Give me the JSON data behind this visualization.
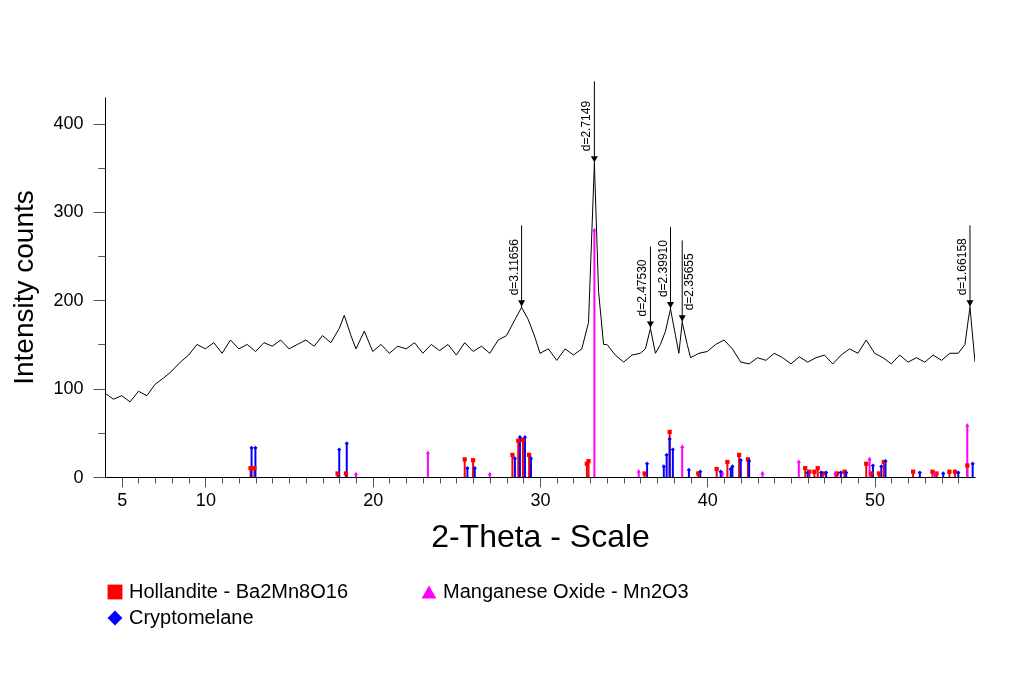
{
  "chart_data": {
    "type": "line",
    "xlabel": "2-Theta - Scale",
    "ylabel": "Intensity counts",
    "xlim": [
      4,
      56
    ],
    "ylim": [
      0,
      430
    ],
    "xticks": [
      5,
      {
        "value": 6,
        "label": null
      },
      {
        "value": 7,
        "label": null
      },
      {
        "value": 8,
        "label": null
      },
      {
        "value": 9,
        "label": null
      },
      10,
      {
        "value": 11,
        "label": null
      },
      {
        "value": 12,
        "label": null
      },
      {
        "value": 13,
        "label": null
      },
      {
        "value": 14,
        "label": null
      },
      {
        "value": 15,
        "label": null
      },
      {
        "value": 16,
        "label": null
      },
      {
        "value": 17,
        "label": null
      },
      {
        "value": 18,
        "label": null
      },
      {
        "value": 19,
        "label": null
      },
      20,
      {
        "value": 21,
        "label": null
      },
      {
        "value": 22,
        "label": null
      },
      {
        "value": 23,
        "label": null
      },
      {
        "value": 24,
        "label": null
      },
      {
        "value": 25,
        "label": null
      },
      {
        "value": 26,
        "label": null
      },
      {
        "value": 27,
        "label": null
      },
      {
        "value": 28,
        "label": null
      },
      {
        "value": 29,
        "label": null
      },
      30,
      {
        "value": 31,
        "label": null
      },
      {
        "value": 32,
        "label": null
      },
      {
        "value": 33,
        "label": null
      },
      {
        "value": 34,
        "label": null
      },
      {
        "value": 35,
        "label": null
      },
      {
        "value": 36,
        "label": null
      },
      {
        "value": 37,
        "label": null
      },
      {
        "value": 38,
        "label": null
      },
      {
        "value": 39,
        "label": null
      },
      40,
      {
        "value": 41,
        "label": null
      },
      {
        "value": 42,
        "label": null
      },
      {
        "value": 43,
        "label": null
      },
      {
        "value": 44,
        "label": null
      },
      {
        "value": 45,
        "label": null
      },
      {
        "value": 46,
        "label": null
      },
      {
        "value": 47,
        "label": null
      },
      {
        "value": 48,
        "label": null
      },
      {
        "value": 49,
        "label": null
      },
      50,
      {
        "value": 51,
        "label": null
      },
      {
        "value": 52,
        "label": null
      },
      {
        "value": 53,
        "label": null
      },
      {
        "value": 54,
        "label": null
      },
      {
        "value": 55,
        "label": null
      }
    ],
    "yticks": [
      0,
      {
        "value": 50,
        "label": null
      },
      100,
      {
        "value": 150,
        "label": null
      },
      200,
      {
        "value": 250,
        "label": null
      },
      300,
      {
        "value": 350,
        "label": null
      },
      400
    ],
    "grid": false,
    "legend": "bottom",
    "annotations": [
      {
        "text": "d=3.11656",
        "x": 28.9,
        "y": 192
      },
      {
        "text": "d=2.7149",
        "x": 33.25,
        "y": 355
      },
      {
        "text": "d=2.47530",
        "x": 36.6,
        "y": 168
      },
      {
        "text": "d=2.39910",
        "x": 37.8,
        "y": 190
      },
      {
        "text": "d=2.35655",
        "x": 38.5,
        "y": 175
      },
      {
        "text": "d=1.66158",
        "x": 55.7,
        "y": 192
      }
    ],
    "series": [
      {
        "type": "line",
        "color": "#000000",
        "marker": "none",
        "line_style": "solid",
        "x": [
          4.0,
          4.5,
          5.0,
          5.5,
          6.0,
          6.5,
          7.0,
          7.5,
          8.0,
          8.5,
          9.0,
          9.5,
          10.0,
          10.5,
          11.0,
          11.5,
          12.0,
          12.5,
          13.0,
          13.5,
          14.0,
          14.5,
          15.0,
          15.5,
          16.0,
          16.5,
          17.0,
          17.5,
          18.0,
          18.3,
          18.7,
          19.0,
          19.5,
          20.0,
          20.5,
          21.0,
          21.5,
          22.0,
          22.5,
          23.0,
          23.5,
          24.0,
          24.5,
          25.0,
          25.5,
          26.0,
          26.5,
          27.0,
          27.5,
          28.0,
          28.5,
          28.9,
          29.3,
          29.7,
          30.0,
          30.5,
          31.0,
          31.5,
          32.0,
          32.5,
          32.9,
          33.25,
          33.5,
          33.8,
          34.0,
          34.5,
          35.0,
          35.5,
          36.0,
          36.3,
          36.6,
          36.9,
          37.2,
          37.5,
          37.8,
          38.1,
          38.3,
          38.5,
          38.8,
          39.0,
          39.5,
          40.0,
          40.5,
          41.0,
          41.5,
          42.0,
          42.5,
          43.0,
          43.5,
          44.0,
          44.5,
          45.0,
          45.5,
          46.0,
          46.5,
          47.0,
          47.5,
          48.0,
          48.5,
          49.0,
          49.5,
          50.0,
          50.5,
          51.0,
          51.5,
          52.0,
          52.5,
          53.0,
          53.5,
          54.0,
          54.5,
          55.0,
          55.4,
          55.7,
          56.0
        ],
        "values": [
          95,
          88,
          92,
          85,
          97,
          92,
          105,
          112,
          120,
          130,
          138,
          150,
          145,
          152,
          140,
          155,
          145,
          150,
          142,
          152,
          148,
          155,
          145,
          150,
          155,
          148,
          160,
          152,
          168,
          183,
          160,
          145,
          165,
          142,
          150,
          140,
          148,
          145,
          152,
          140,
          150,
          143,
          150,
          138,
          152,
          142,
          148,
          140,
          155,
          160,
          178,
          192,
          178,
          158,
          140,
          145,
          132,
          145,
          138,
          145,
          175,
          355,
          210,
          150,
          150,
          138,
          130,
          138,
          140,
          145,
          168,
          140,
          150,
          165,
          190,
          160,
          140,
          175,
          150,
          135,
          140,
          142,
          150,
          155,
          145,
          130,
          128,
          135,
          132,
          140,
          135,
          128,
          136,
          130,
          135,
          138,
          128,
          138,
          145,
          140,
          155,
          140,
          135,
          128,
          138,
          130,
          135,
          130,
          138,
          132,
          140,
          140,
          150,
          192,
          130
        ]
      },
      {
        "name": "Hollandite - Ba2Mn8O16",
        "type": "lollipop",
        "color": "#ff0000",
        "marker": "square",
        "x": [
          12.7,
          12.93,
          17.9,
          18.4,
          25.5,
          26.0,
          28.35,
          28.7,
          28.98,
          29.35,
          32.8,
          32.9,
          36.25,
          37.75,
          39.46,
          40.56,
          41.2,
          41.9,
          42.43,
          45.85,
          46.1,
          46.4,
          46.6,
          46.9,
          47.75,
          48.2,
          49.5,
          49.8,
          50.26,
          50.55,
          52.3,
          53.46,
          53.7,
          54.47,
          54.8,
          55.54
        ],
        "values": [
          10,
          10,
          4,
          4,
          20,
          19,
          25,
          41,
          42,
          25,
          15,
          18,
          4,
          51,
          4,
          9,
          17,
          25,
          20,
          10,
          6,
          6,
          10,
          4,
          4,
          6,
          15,
          4,
          4,
          17,
          6,
          6,
          4,
          6,
          6,
          13
        ]
      },
      {
        "name": "Manganese Oxide - Mn2O3",
        "type": "lollipop",
        "color": "#ff00ff",
        "marker": "triangle",
        "x": [
          19.0,
          23.3,
          27.0,
          33.25,
          35.9,
          38.5,
          40.9,
          43.3,
          45.47,
          47.65,
          49.7,
          53.6,
          55.54
        ],
        "values": [
          4,
          28,
          4,
          280,
          7,
          35,
          5,
          5,
          18,
          5,
          21,
          5,
          59
        ]
      },
      {
        "name": "Cryptomelane",
        "type": "lollipop",
        "color": "#0000ff",
        "marker": "diamond",
        "x": [
          12.76,
          12.99,
          18.0,
          18.45,
          25.66,
          26.1,
          28.5,
          28.8,
          29.1,
          29.46,
          36.4,
          37.4,
          37.57,
          37.75,
          37.94,
          38.9,
          39.58,
          40.8,
          41.4,
          41.5,
          42.0,
          42.5,
          46.0,
          46.8,
          47.1,
          47.98,
          48.3,
          49.9,
          50.4,
          50.65,
          52.7,
          54.1,
          55.0,
          55.86
        ],
        "values": [
          33,
          33,
          31,
          38,
          10,
          10,
          21,
          45,
          45,
          21,
          15,
          12,
          25,
          43,
          31,
          8,
          6,
          6,
          9,
          12,
          19,
          18,
          5,
          5,
          5,
          5,
          5,
          13,
          12,
          18,
          5,
          4,
          5,
          15
        ]
      }
    ]
  }
}
